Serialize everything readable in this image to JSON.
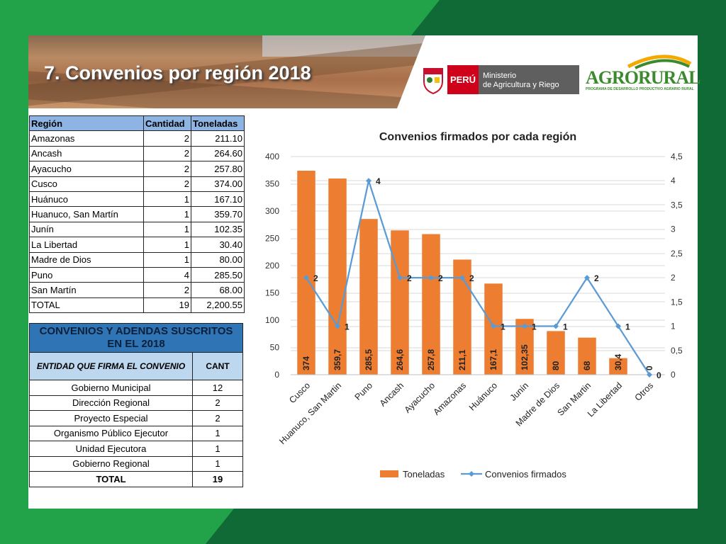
{
  "slide": {
    "title": "7. Convenios por región 2018",
    "logos": {
      "peru": "PERÚ",
      "ministry_line1": "Ministerio",
      "ministry_line2": "de Agricultura y Riego",
      "agrorural": "AGRORURAL",
      "agrorural_sub": "PROGRAMA DE DESARROLLO PRODUCTIVO AGRARIO RURAL"
    }
  },
  "table_regions": {
    "headers": [
      "Región",
      "Cantidad",
      "Toneladas"
    ],
    "rows": [
      [
        "Amazonas",
        "2",
        "211.10"
      ],
      [
        "Ancash",
        "2",
        "264.60"
      ],
      [
        "Ayacucho",
        "2",
        "257.80"
      ],
      [
        "Cusco",
        "2",
        "374.00"
      ],
      [
        "Huánuco",
        "1",
        "167.10"
      ],
      [
        "Huanuco, San Martín",
        "1",
        "359.70"
      ],
      [
        "Junín",
        "1",
        "102.35"
      ],
      [
        "La Libertad",
        "1",
        "30.40"
      ],
      [
        "Madre de Dios",
        "1",
        "80.00"
      ],
      [
        "Puno",
        "4",
        "285.50"
      ],
      [
        "San Martín",
        "2",
        "68.00"
      ],
      [
        "TOTAL",
        "19",
        "2,200.55"
      ]
    ]
  },
  "table_entities": {
    "title": "CONVENIOS Y ADENDAS SUSCRITOS EN EL 2018",
    "col1": "ENTIDAD QUE FIRMA EL CONVENIO",
    "col2": "CANT",
    "rows": [
      [
        "Gobierno Municipal",
        "12"
      ],
      [
        "Dirección Regional",
        "2"
      ],
      [
        "Proyecto  Especial",
        "2"
      ],
      [
        "Organismo Público Ejecutor",
        "1"
      ],
      [
        "Unidad Ejecutora",
        "1"
      ],
      [
        "Gobierno Regional",
        "1"
      ],
      [
        "TOTAL",
        "19"
      ]
    ]
  },
  "chart_data": {
    "type": "bar",
    "title": "Convenios firmados por cada región",
    "categories": [
      "Cusco",
      "Huanuco, San Martin",
      "Puno",
      "Ancash",
      "Ayacucho",
      "Amazonas",
      "Huánuco",
      "Junín",
      "Madre de Dios",
      "San Martin",
      "La Libertad",
      "Otros"
    ],
    "series": [
      {
        "name": "Toneladas",
        "type": "bar",
        "axis": "left",
        "color": "#ed7d31",
        "values": [
          374,
          359.7,
          285.5,
          264.6,
          257.8,
          211.1,
          167.1,
          102.35,
          80,
          68,
          30.4,
          0
        ],
        "labels": [
          "374",
          "359,7",
          "285,5",
          "264,6",
          "257,8",
          "211,1",
          "167,1",
          "102,35",
          "80",
          "68",
          "30,4",
          "0"
        ]
      },
      {
        "name": "Convenios firmados",
        "type": "line",
        "axis": "right",
        "color": "#5b9bd5",
        "values": [
          2,
          1,
          4,
          2,
          2,
          2,
          1,
          1,
          1,
          2,
          1,
          0
        ],
        "labels": [
          "2",
          "1",
          "4",
          "2",
          "2",
          "2",
          "1",
          "1",
          "1",
          "2",
          "1",
          "0"
        ]
      }
    ],
    "y_left": {
      "min": 0,
      "max": 400,
      "ticks": [
        "0",
        "50",
        "100",
        "150",
        "200",
        "250",
        "300",
        "350",
        "400"
      ]
    },
    "y_right": {
      "min": 0,
      "max": 4.5,
      "ticks": [
        "0",
        "0,5",
        "1",
        "1,5",
        "2",
        "2,5",
        "3",
        "3,5",
        "4",
        "4,5"
      ]
    },
    "grid": true,
    "legend_position": "bottom"
  }
}
